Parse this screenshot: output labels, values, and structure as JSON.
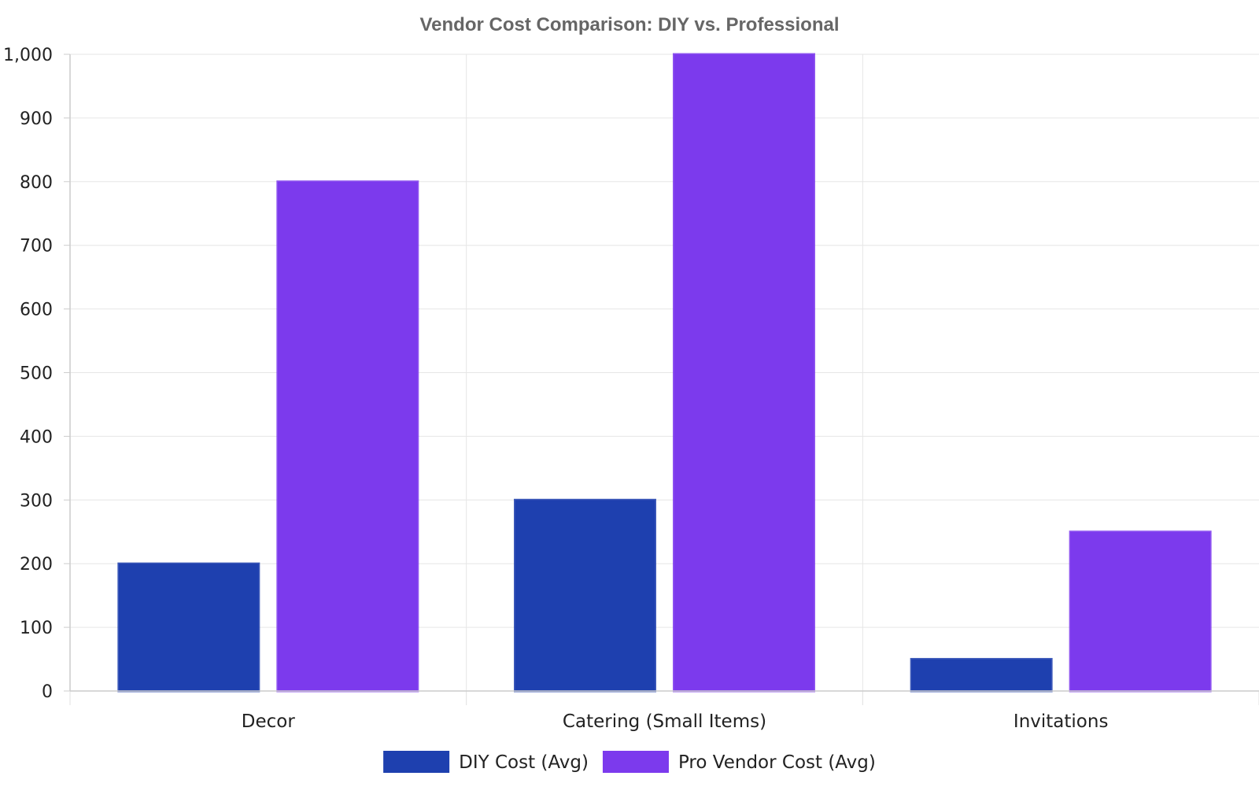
{
  "chart_data": {
    "type": "bar",
    "title": "Vendor Cost Comparison: DIY vs. Professional",
    "xlabel": "",
    "ylabel": "",
    "categories": [
      "Decor",
      "Catering (Small Items)",
      "Invitations"
    ],
    "series": [
      {
        "name": "DIY Cost (Avg)",
        "values": [
          200,
          300,
          50
        ],
        "color": "#1e40af"
      },
      {
        "name": "Pro Vendor Cost (Avg)",
        "values": [
          800,
          1000,
          250
        ],
        "color": "#7c3aed"
      }
    ],
    "ylim": [
      0,
      1000
    ],
    "yticks": [
      0,
      100,
      200,
      300,
      400,
      500,
      600,
      700,
      800,
      900,
      1000
    ],
    "ytick_labels": [
      "0",
      "100",
      "200",
      "300",
      "400",
      "500",
      "600",
      "700",
      "800",
      "900",
      "1,000"
    ],
    "grid": true,
    "legend_position": "bottom-center"
  }
}
